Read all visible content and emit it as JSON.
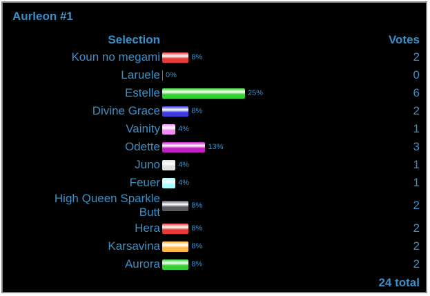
{
  "title": "Aurleon #1",
  "header": {
    "selection": "Selection",
    "votes": "Votes"
  },
  "rows": [
    {
      "label": "Koun no megami",
      "percent": 8,
      "percent_label": "8%",
      "votes": 2,
      "color": "#e83a3a"
    },
    {
      "label": "Laruele",
      "percent": 0,
      "percent_label": "0%",
      "votes": 0,
      "color": "#e83a3a"
    },
    {
      "label": "Estelle",
      "percent": 25,
      "percent_label": "25%",
      "votes": 6,
      "color": "#34d234"
    },
    {
      "label": "Divine Grace",
      "percent": 8,
      "percent_label": "8%",
      "votes": 2,
      "color": "#3a3ae0"
    },
    {
      "label": "Vainity",
      "percent": 4,
      "percent_label": "4%",
      "votes": 1,
      "color": "#f48af4"
    },
    {
      "label": "Odette",
      "percent": 13,
      "percent_label": "13%",
      "votes": 3,
      "color": "#c21ec2"
    },
    {
      "label": "Juno",
      "percent": 4,
      "percent_label": "4%",
      "votes": 1,
      "color": "#e0e0e0"
    },
    {
      "label": "Feuer",
      "percent": 4,
      "percent_label": "4%",
      "votes": 1,
      "color": "#a8ffff"
    },
    {
      "label": "High Queen Sparkle Butt",
      "percent": 8,
      "percent_label": "8%",
      "votes": 2,
      "color": "#5e5a60"
    },
    {
      "label": "Hera",
      "percent": 8,
      "percent_label": "8%",
      "votes": 2,
      "color": "#e83a3a"
    },
    {
      "label": "Karsavina",
      "percent": 8,
      "percent_label": "8%",
      "votes": 2,
      "color": "#ffb848"
    },
    {
      "label": "Aurora",
      "percent": 8,
      "percent_label": "8%",
      "votes": 2,
      "color": "#34d234"
    }
  ],
  "total": "24 total"
}
